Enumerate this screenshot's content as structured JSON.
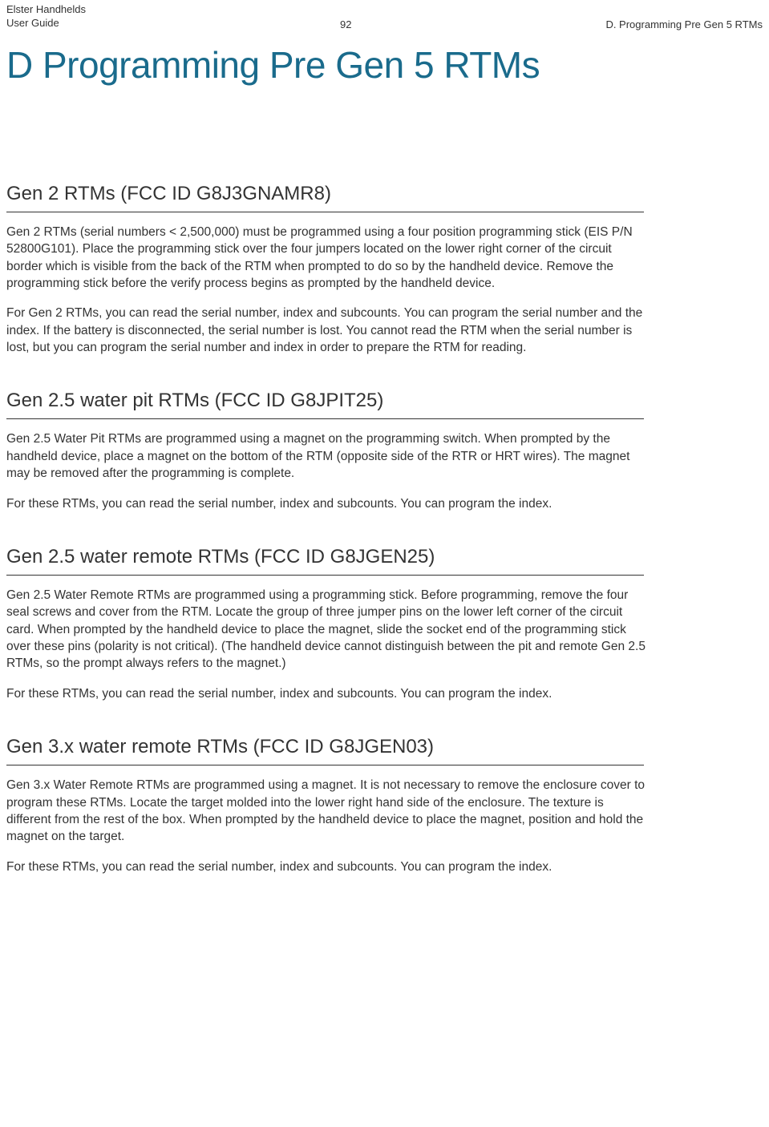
{
  "header": {
    "brand": "Elster Handhelds",
    "guide": "User Guide",
    "page_number": "92",
    "chapter_ref": "D. Programming Pre Gen 5 RTMs"
  },
  "title": "D Programming Pre Gen 5 RTMs",
  "sections": [
    {
      "heading": "Gen 2 RTMs (FCC ID G8J3GNAMR8)",
      "paragraphs": [
        "Gen 2 RTMs (serial numbers < 2,500,000) must be programmed using a four position programming stick (EIS P/N 52800G101). Place the programming stick over the four jumpers located on the lower right corner of the circuit border which is visible from the back of the RTM when prompted to do so by the handheld device. Remove the programming stick before the verify process begins as prompted by the handheld device.",
        "For Gen 2 RTMs, you can read the serial number, index and subcounts. You can program the serial number and the index. If the battery is disconnected, the serial number is lost. You cannot read the RTM when the serial number is lost, but you can program the serial number and index in order to prepare the RTM for reading."
      ]
    },
    {
      "heading": "Gen 2.5 water pit RTMs (FCC ID G8JPIT25)",
      "paragraphs": [
        "Gen 2.5 Water Pit RTMs are programmed using a magnet on the programming switch. When prompted by the handheld device, place a magnet on the bottom of the RTM (opposite side of the RTR or HRT wires). The magnet may be removed after the programming is complete.",
        "For these RTMs, you can read the serial number, index and subcounts. You can program the index."
      ]
    },
    {
      "heading": "Gen 2.5 water remote RTMs (FCC ID G8JGEN25)",
      "paragraphs": [
        "Gen 2.5 Water Remote RTMs are programmed using a programming stick. Before programming, remove the four seal screws and cover from the RTM. Locate the group of three jumper pins on the lower left corner of the circuit card. When prompted by the handheld device to place the magnet, slide the socket end of the programming stick over these pins (polarity is not critical). (The handheld device cannot distinguish between the pit and remote Gen 2.5 RTMs, so the prompt always refers to the magnet.)",
        "For these RTMs, you can read the serial number, index and subcounts. You can program the index."
      ]
    },
    {
      "heading": "Gen 3.x water remote RTMs (FCC ID G8JGEN03)",
      "paragraphs": [
        "Gen 3.x Water Remote RTMs are programmed using a magnet. It is not necessary to remove the enclosure cover to program these RTMs. Locate the target molded into the lower right hand side of the enclosure. The texture is different from the rest of the box. When prompted by the handheld device to place the magnet, position and hold the magnet on the target.",
        "For these RTMs, you can read the serial number, index and subcounts. You can program the index."
      ]
    }
  ]
}
